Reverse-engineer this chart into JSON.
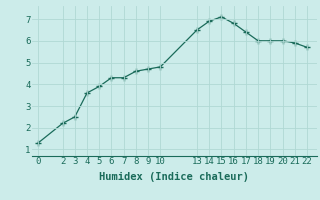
{
  "x": [
    0,
    2,
    3,
    4,
    5,
    6,
    7,
    8,
    9,
    10,
    13,
    14,
    15,
    16,
    17,
    18,
    19,
    20,
    21,
    22
  ],
  "y": [
    1.3,
    2.2,
    2.5,
    3.6,
    3.9,
    4.3,
    4.3,
    4.6,
    4.7,
    4.8,
    6.5,
    6.9,
    7.1,
    6.8,
    6.4,
    6.0,
    6.0,
    6.0,
    5.9,
    5.7
  ],
  "xticks": [
    0,
    2,
    3,
    4,
    5,
    6,
    7,
    8,
    9,
    10,
    13,
    14,
    15,
    16,
    17,
    18,
    19,
    20,
    21,
    22
  ],
  "yticks": [
    1,
    2,
    3,
    4,
    5,
    6,
    7
  ],
  "xlim": [
    -0.5,
    22.8
  ],
  "ylim": [
    0.7,
    7.6
  ],
  "xlabel": "Humidex (Indice chaleur)",
  "line_color": "#1a6b5a",
  "marker": "+",
  "bg_color": "#ccecea",
  "grid_color": "#b0d8d4",
  "xlabel_fontsize": 7.5,
  "tick_fontsize": 6.5
}
